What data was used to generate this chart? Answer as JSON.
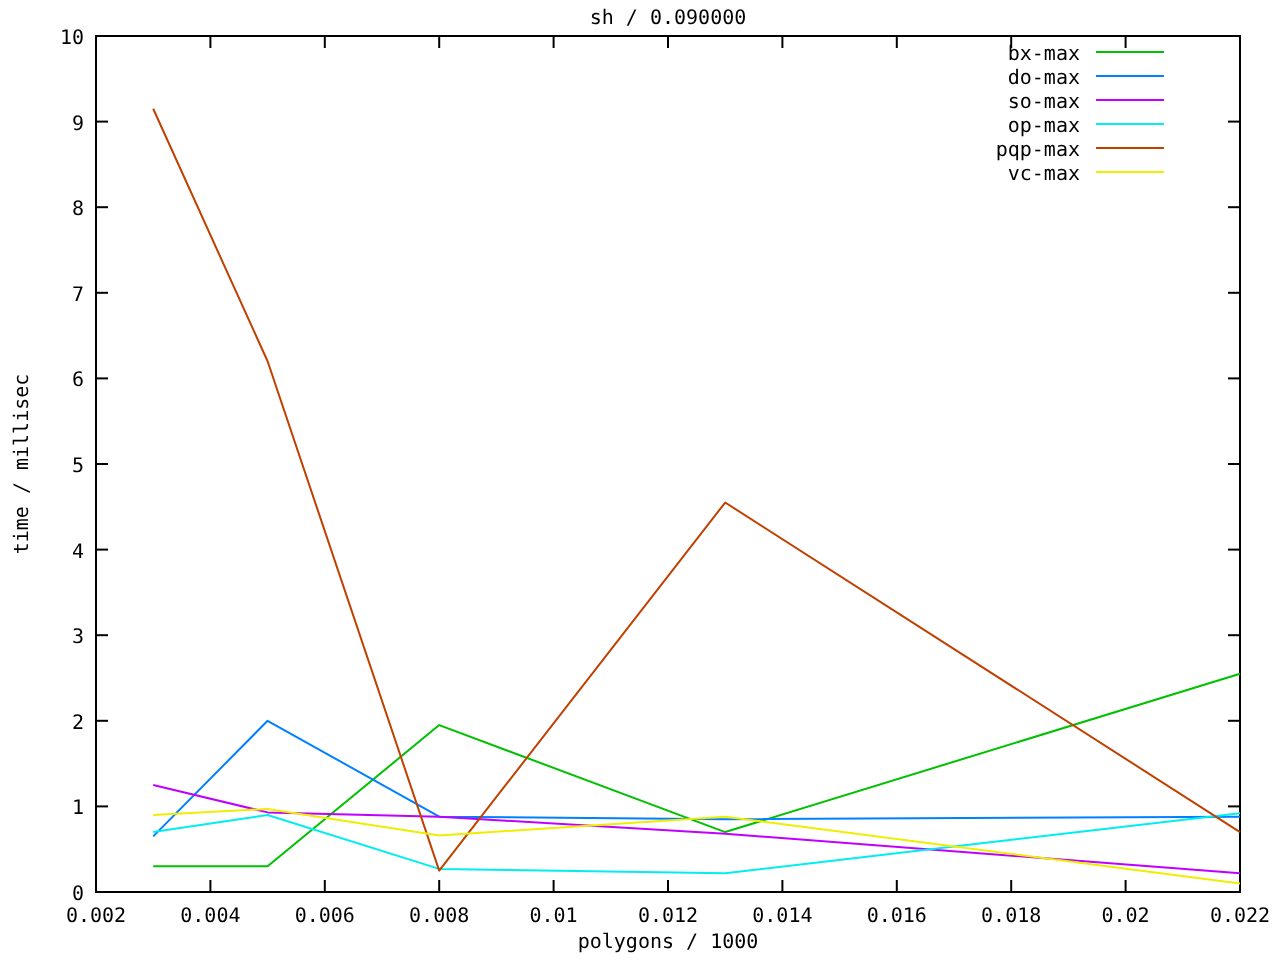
{
  "chart_data": {
    "type": "line",
    "title": "sh / 0.090000",
    "xlabel": "polygons / 1000",
    "ylabel": "time / millisec",
    "x": [
      0.003,
      0.005,
      0.008,
      0.013,
      0.022
    ],
    "series": [
      {
        "name": "bx-max",
        "color": "#00c000",
        "values": [
          0.3,
          0.3,
          1.95,
          0.7,
          2.55
        ]
      },
      {
        "name": "do-max",
        "color": "#0080ff",
        "values": [
          0.65,
          2.0,
          0.88,
          0.85,
          0.88
        ]
      },
      {
        "name": "so-max",
        "color": "#c000ff",
        "values": [
          1.25,
          0.93,
          0.88,
          0.68,
          0.22
        ]
      },
      {
        "name": "op-max",
        "color": "#00eeee",
        "values": [
          0.7,
          0.9,
          0.27,
          0.22,
          0.92
        ]
      },
      {
        "name": "pqp-max",
        "color": "#c04000",
        "values": [
          9.15,
          6.2,
          0.25,
          4.55,
          0.7
        ]
      },
      {
        "name": "vc-max",
        "color": "#eeee00",
        "values": [
          0.9,
          0.97,
          0.66,
          0.88,
          0.1
        ]
      }
    ],
    "xlim": [
      0.002,
      0.022
    ],
    "xticks": [
      0.002,
      0.004,
      0.006,
      0.008,
      0.01,
      0.012,
      0.014,
      0.016,
      0.018,
      0.02,
      0.022
    ],
    "ylim": [
      0,
      10
    ],
    "yticks": [
      0,
      1,
      2,
      3,
      4,
      5,
      6,
      7,
      8,
      9,
      10
    ],
    "grid": false,
    "legend": "top right",
    "marker": "none",
    "line_style": "solid"
  }
}
